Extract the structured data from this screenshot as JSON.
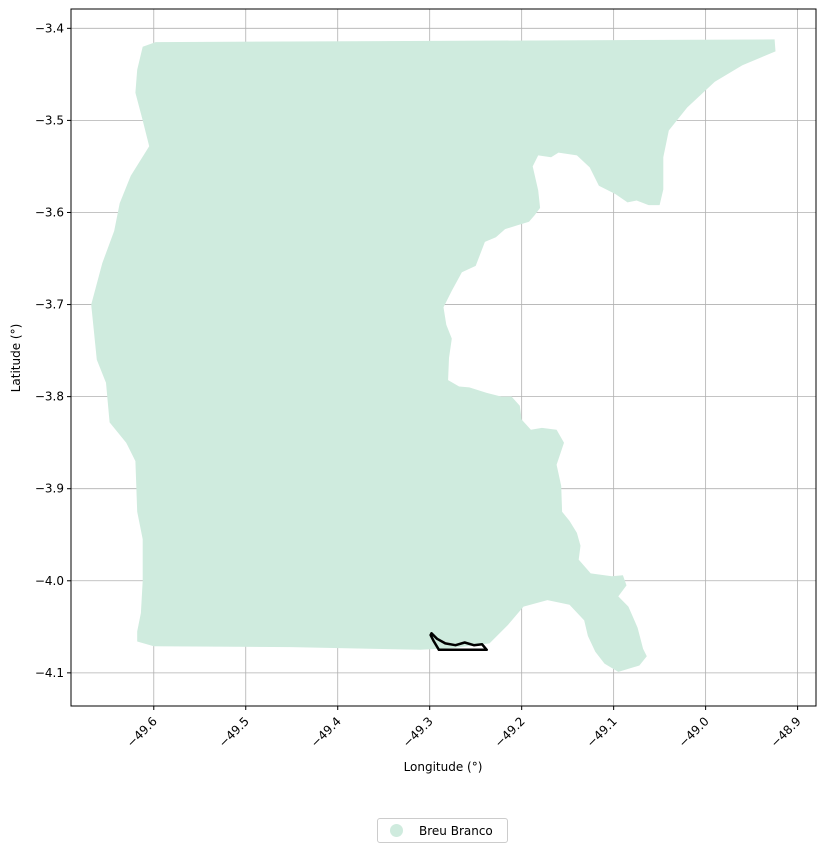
{
  "chart_data": {
    "type": "map",
    "xlabel": "Longitude (°)",
    "ylabel": "Latitude (°)",
    "xlim": [
      -49.69,
      -48.88
    ],
    "ylim": [
      -4.136,
      -3.379
    ],
    "grid": true,
    "xticks": [
      -49.6,
      -49.5,
      -49.4,
      -49.3,
      -49.2,
      -49.1,
      -49.0,
      -48.9
    ],
    "xtick_labels": [
      "−49.6",
      "−49.5",
      "−49.4",
      "−49.3",
      "−49.2",
      "−49.1",
      "−49.0",
      "−48.9"
    ],
    "yticks": [
      -3.4,
      -3.5,
      -3.6,
      -3.7,
      -3.8,
      -3.9,
      -4.0,
      -4.1
    ],
    "ytick_labels": [
      "−3.4",
      "−3.5",
      "−3.6",
      "−3.7",
      "−3.8",
      "−3.9",
      "−4.0",
      "−4.1"
    ],
    "legend_position": "bottom-center",
    "series": [
      {
        "name": "Breu Branco",
        "color": "#cfebde",
        "polygon": [
          [
            -49.598,
            -3.415
          ],
          [
            -48.925,
            -3.412
          ],
          [
            -48.924,
            -3.425
          ],
          [
            -48.96,
            -3.44
          ],
          [
            -48.99,
            -3.458
          ],
          [
            -49.02,
            -3.486
          ],
          [
            -49.04,
            -3.511
          ],
          [
            -49.046,
            -3.54
          ],
          [
            -49.046,
            -3.575
          ],
          [
            -49.05,
            -3.592
          ],
          [
            -49.062,
            -3.592
          ],
          [
            -49.075,
            -3.587
          ],
          [
            -49.085,
            -3.589
          ],
          [
            -49.098,
            -3.58
          ],
          [
            -49.116,
            -3.571
          ],
          [
            -49.126,
            -3.551
          ],
          [
            -49.14,
            -3.538
          ],
          [
            -49.16,
            -3.535
          ],
          [
            -49.168,
            -3.54
          ],
          [
            -49.182,
            -3.538
          ],
          [
            -49.188,
            -3.55
          ],
          [
            -49.182,
            -3.576
          ],
          [
            -49.18,
            -3.595
          ],
          [
            -49.186,
            -3.603
          ],
          [
            -49.192,
            -3.61
          ],
          [
            -49.205,
            -3.614
          ],
          [
            -49.218,
            -3.618
          ],
          [
            -49.228,
            -3.627
          ],
          [
            -49.24,
            -3.632
          ],
          [
            -49.25,
            -3.658
          ],
          [
            -49.265,
            -3.665
          ],
          [
            -49.276,
            -3.685
          ],
          [
            -49.285,
            -3.703
          ],
          [
            -49.282,
            -3.722
          ],
          [
            -49.276,
            -3.737
          ],
          [
            -49.279,
            -3.758
          ],
          [
            -49.28,
            -3.782
          ],
          [
            -49.268,
            -3.789
          ],
          [
            -49.257,
            -3.79
          ],
          [
            -49.238,
            -3.796
          ],
          [
            -49.222,
            -3.8
          ],
          [
            -49.211,
            -3.8
          ],
          [
            -49.202,
            -3.81
          ],
          [
            -49.2,
            -3.825
          ],
          [
            -49.19,
            -3.836
          ],
          [
            -49.178,
            -3.834
          ],
          [
            -49.162,
            -3.836
          ],
          [
            -49.154,
            -3.85
          ],
          [
            -49.162,
            -3.874
          ],
          [
            -49.157,
            -3.897
          ],
          [
            -49.156,
            -3.925
          ],
          [
            -49.148,
            -3.935
          ],
          [
            -49.14,
            -3.948
          ],
          [
            -49.136,
            -3.962
          ],
          [
            -49.138,
            -3.977
          ],
          [
            -49.125,
            -3.992
          ],
          [
            -49.102,
            -3.995
          ],
          [
            -49.09,
            -3.994
          ],
          [
            -49.086,
            -4.005
          ],
          [
            -49.095,
            -4.017
          ],
          [
            -49.084,
            -4.028
          ],
          [
            -49.074,
            -4.051
          ],
          [
            -49.068,
            -4.074
          ],
          [
            -49.064,
            -4.082
          ],
          [
            -49.072,
            -4.092
          ],
          [
            -49.095,
            -4.099
          ],
          [
            -49.11,
            -4.09
          ],
          [
            -49.12,
            -4.077
          ],
          [
            -49.128,
            -4.06
          ],
          [
            -49.132,
            -4.043
          ],
          [
            -49.148,
            -4.026
          ],
          [
            -49.172,
            -4.021
          ],
          [
            -49.198,
            -4.028
          ],
          [
            -49.215,
            -4.048
          ],
          [
            -49.235,
            -4.068
          ],
          [
            -49.275,
            -4.073
          ],
          [
            -49.31,
            -4.075
          ],
          [
            -49.45,
            -4.072
          ],
          [
            -49.6,
            -4.071
          ],
          [
            -49.618,
            -4.066
          ],
          [
            -49.618,
            -4.055
          ],
          [
            -49.614,
            -4.035
          ],
          [
            -49.612,
            -4.0
          ],
          [
            -49.612,
            -3.955
          ],
          [
            -49.618,
            -3.925
          ],
          [
            -49.62,
            -3.87
          ],
          [
            -49.63,
            -3.85
          ],
          [
            -49.648,
            -3.828
          ],
          [
            -49.652,
            -3.785
          ],
          [
            -49.662,
            -3.76
          ],
          [
            -49.668,
            -3.7
          ],
          [
            -49.656,
            -3.655
          ],
          [
            -49.643,
            -3.62
          ],
          [
            -49.637,
            -3.59
          ],
          [
            -49.625,
            -3.56
          ],
          [
            -49.605,
            -3.528
          ],
          [
            -49.612,
            -3.5
          ],
          [
            -49.62,
            -3.47
          ],
          [
            -49.618,
            -3.445
          ],
          [
            -49.612,
            -3.42
          ]
        ]
      }
    ],
    "outline": [
      [
        -49.298,
        -4.057
      ],
      [
        -49.292,
        -4.063
      ],
      [
        -49.283,
        -4.068
      ],
      [
        -49.272,
        -4.07
      ],
      [
        -49.262,
        -4.067
      ],
      [
        -49.252,
        -4.07
      ],
      [
        -49.243,
        -4.069
      ],
      [
        -49.238,
        -4.075
      ],
      [
        -49.29,
        -4.075
      ],
      [
        -49.296,
        -4.065
      ],
      [
        -49.299,
        -4.059
      ]
    ]
  }
}
